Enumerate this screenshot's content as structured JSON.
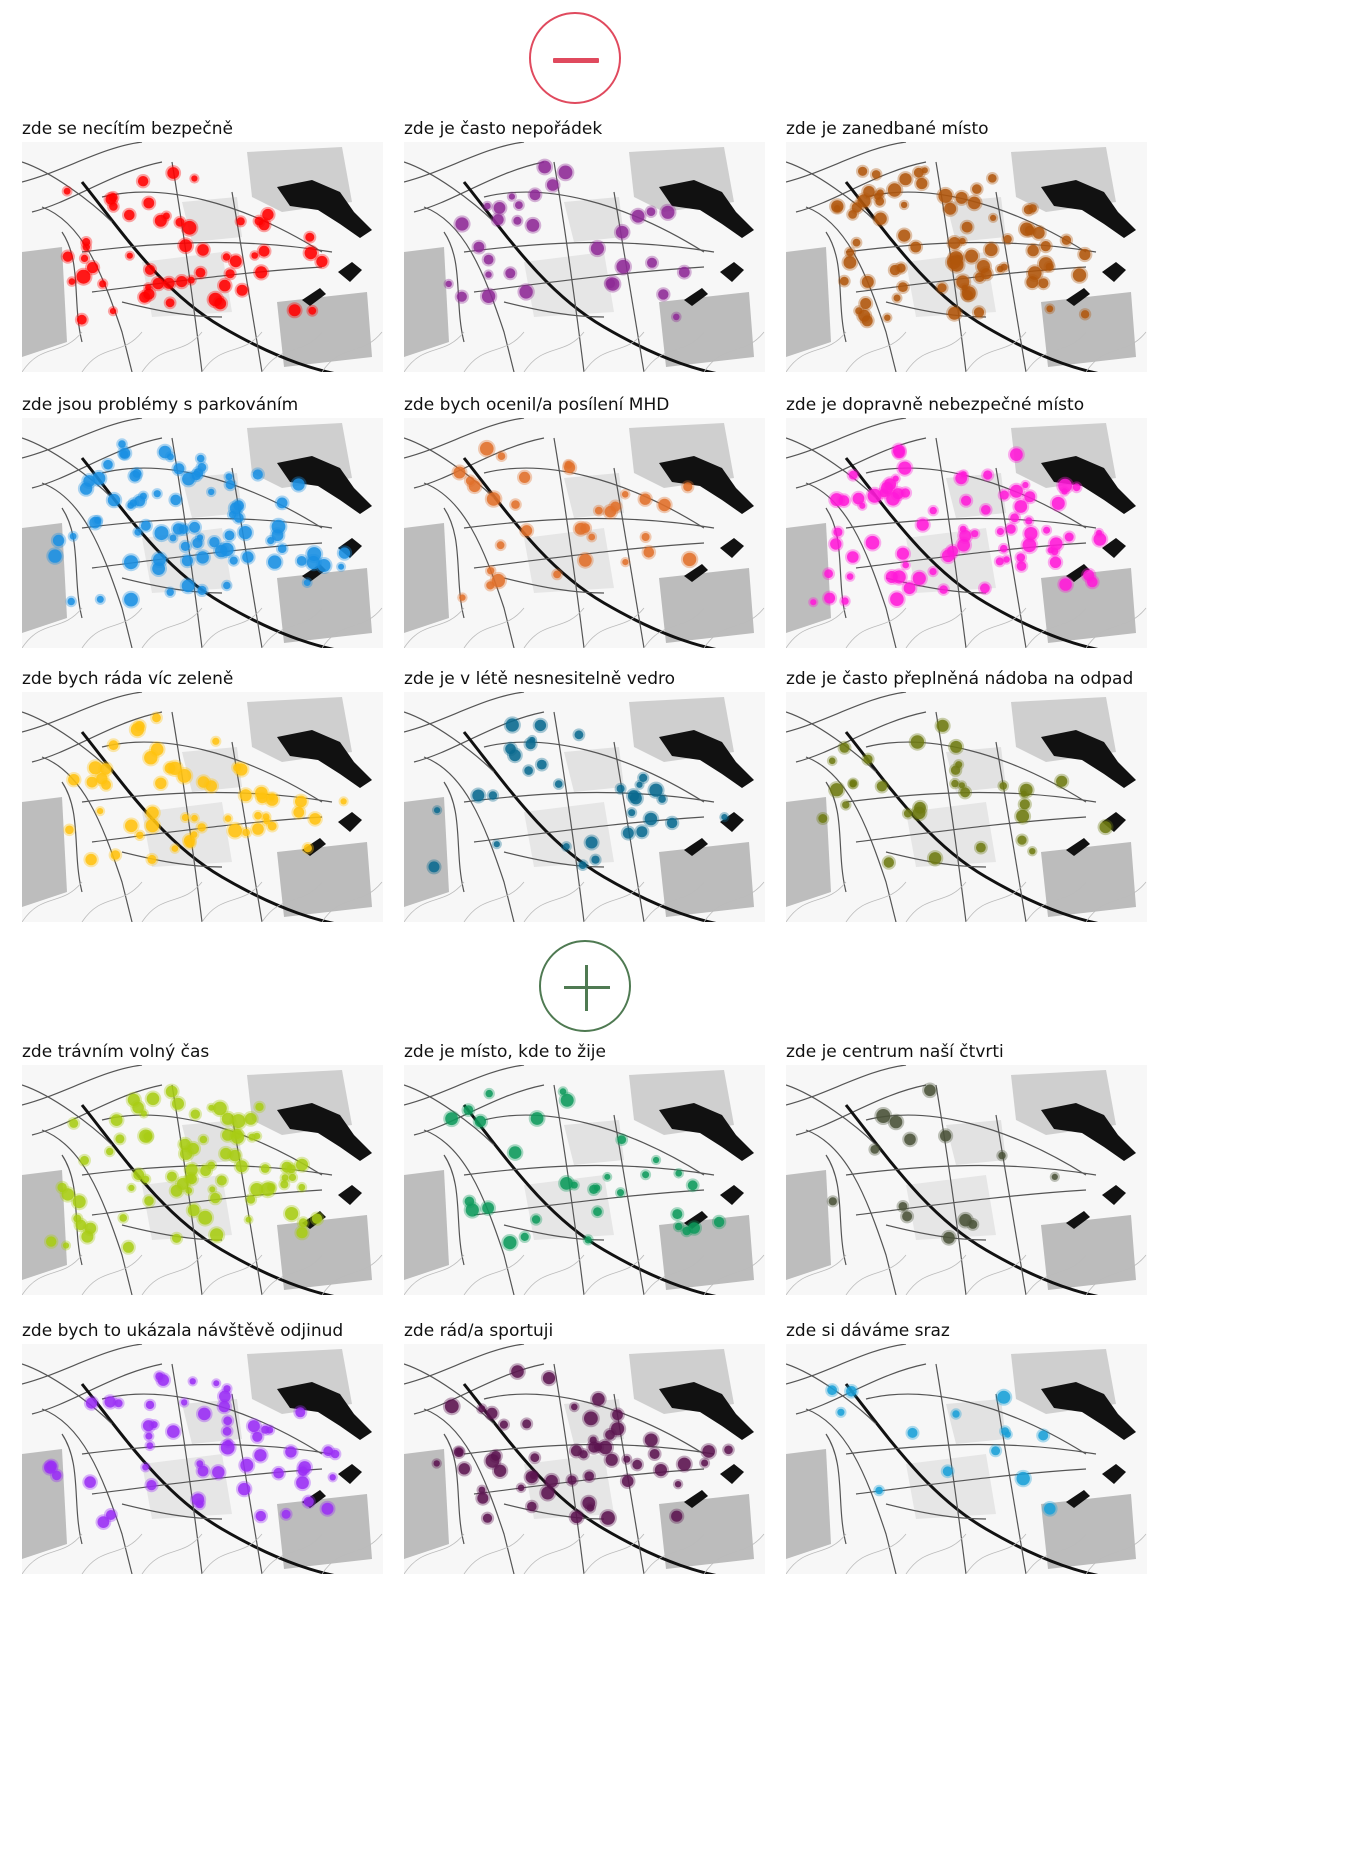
{
  "negative_section": {
    "icon": "minus-icon",
    "color": "#e04a5e",
    "maps": [
      {
        "label": "zde se necítím bezpečně",
        "color": "#ff0000",
        "density": "high",
        "seed": 11
      },
      {
        "label": "zde je často nepořádek",
        "color": "#8e2a96",
        "density": "medium",
        "seed": 23
      },
      {
        "label": "zde je zanedbané místo",
        "color": "#b0560c",
        "density": "very-high",
        "seed": 37
      },
      {
        "label": "zde jsou problémy s parkováním",
        "color": "#1a8fe3",
        "density": "very-high",
        "seed": 41
      },
      {
        "label": "zde bych ocenil/a posílení MHD",
        "color": "#e0702a",
        "density": "medium",
        "seed": 53
      },
      {
        "label": "zde je dopravně nebezpečné místo",
        "color": "#ff1ad8",
        "density": "very-high",
        "seed": 67
      },
      {
        "label": "zde bych ráda víc zeleně",
        "color": "#ffc20e",
        "density": "high",
        "seed": 71
      },
      {
        "label": "zde je v létě nesnesitelně vedro",
        "color": "#0a6a8f",
        "density": "medium",
        "seed": 83
      },
      {
        "label": "zde je často přeplněná nádoba na odpad",
        "color": "#6e7a12",
        "density": "medium",
        "seed": 97
      }
    ]
  },
  "positive_section": {
    "icon": "plus-icon",
    "color": "#4f7a52",
    "maps": [
      {
        "label": "zde trávním volný čas",
        "color": "#a8cc14",
        "density": "very-high",
        "seed": 101
      },
      {
        "label": "zde je místo, kde to žije",
        "color": "#0d9a5c",
        "density": "medium",
        "seed": 113
      },
      {
        "label": "zde je centrum naší čtvrti",
        "color": "#4a5238",
        "density": "low",
        "seed": 127
      },
      {
        "label": "zde bych to ukázala návštěvě odjinud",
        "color": "#9a2ef5",
        "density": "high",
        "seed": 131
      },
      {
        "label": "zde rád/a sportuji",
        "color": "#5c1450",
        "density": "high",
        "seed": 149
      },
      {
        "label": "zde si dáváme sraz",
        "color": "#1aa0d8",
        "density": "low",
        "seed": 157
      }
    ]
  }
}
